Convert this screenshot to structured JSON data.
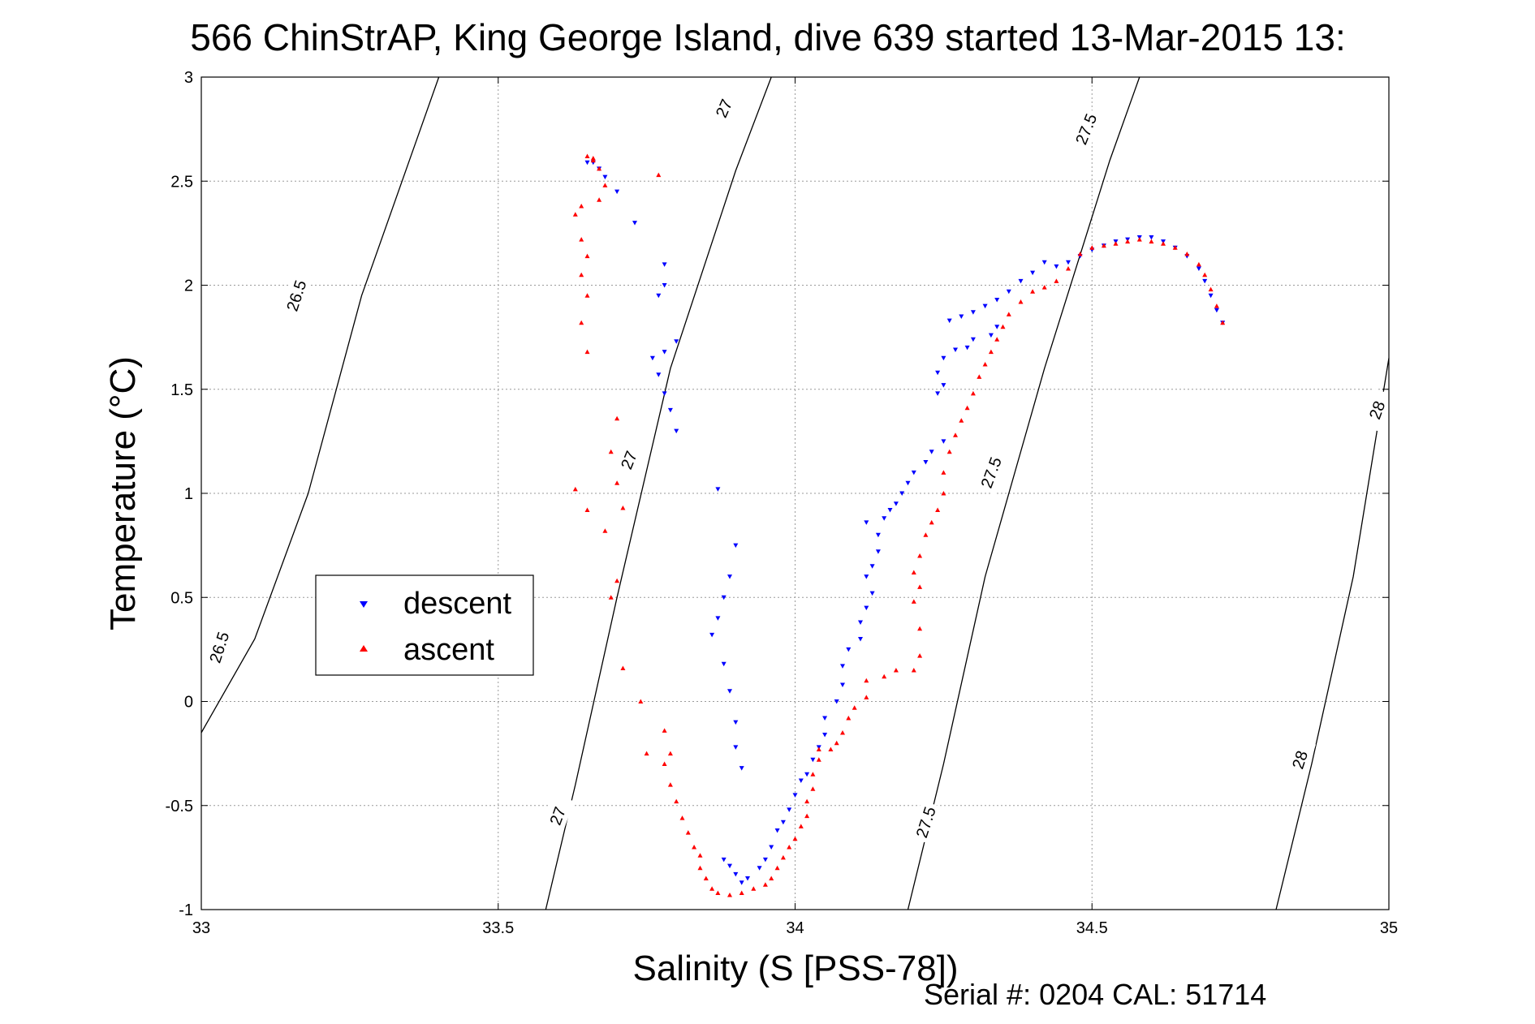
{
  "chart_data": {
    "type": "scatter",
    "title": "566 ChinStrAP, King George Island, dive 639 started 13-Mar-2015 13:",
    "xlabel": "Salinity (S [PSS-78])",
    "ylabel": "Temperature (°C)",
    "footer": "Serial #: 0204  CAL: 51714",
    "xlim": [
      33,
      35
    ],
    "ylim": [
      -1,
      3
    ],
    "xticks": [
      33,
      33.5,
      34,
      34.5,
      35
    ],
    "xtick_labels": [
      "33",
      "33.5",
      "34",
      "34.5",
      "35"
    ],
    "yticks": [
      -1,
      -0.5,
      0,
      0.5,
      1,
      1.5,
      2,
      2.5,
      3
    ],
    "ytick_labels": [
      "-1",
      "-0.5",
      "0",
      "0.5",
      "1",
      "1.5",
      "2",
      "2.5",
      "3"
    ],
    "grid": true,
    "legend_position": "left-middle",
    "contours": [
      {
        "level": "26.5",
        "points": [
          [
            33.0,
            -0.15
          ],
          [
            33.09,
            0.3
          ],
          [
            33.18,
            1.0
          ],
          [
            33.27,
            1.95
          ],
          [
            33.4,
            3.0
          ]
        ]
      },
      {
        "level": "27",
        "points": [
          [
            33.58,
            -1.0
          ],
          [
            33.63,
            -0.4
          ],
          [
            33.7,
            0.5
          ],
          [
            33.79,
            1.6
          ],
          [
            33.9,
            2.55
          ],
          [
            33.96,
            3.0
          ]
        ]
      },
      {
        "level": "27.5",
        "points": [
          [
            34.19,
            -1.0
          ],
          [
            34.25,
            -0.3
          ],
          [
            34.32,
            0.6
          ],
          [
            34.42,
            1.6
          ],
          [
            34.53,
            2.6
          ],
          [
            34.58,
            3.0
          ]
        ]
      },
      {
        "level": "28",
        "points": [
          [
            34.81,
            -1.0
          ],
          [
            34.87,
            -0.3
          ],
          [
            34.94,
            0.6
          ],
          [
            35.0,
            1.65
          ]
        ]
      }
    ],
    "contour_labels": [
      {
        "text": "26.5",
        "x": 33.16,
        "y": 1.95,
        "angle": -72
      },
      {
        "text": "26.5",
        "x": 33.03,
        "y": 0.26,
        "angle": -72
      },
      {
        "text": "27",
        "x": 33.88,
        "y": 2.85,
        "angle": -66
      },
      {
        "text": "27",
        "x": 33.72,
        "y": 1.16,
        "angle": -68
      },
      {
        "text": "27",
        "x": 33.6,
        "y": -0.55,
        "angle": -70
      },
      {
        "text": "27.5",
        "x": 34.49,
        "y": 2.75,
        "angle": -68
      },
      {
        "text": "27.5",
        "x": 34.33,
        "y": 1.1,
        "angle": -70
      },
      {
        "text": "27.5",
        "x": 34.22,
        "y": -0.58,
        "angle": -72
      },
      {
        "text": "28",
        "x": 34.98,
        "y": 1.4,
        "angle": -70
      },
      {
        "text": "28",
        "x": 34.85,
        "y": -0.28,
        "angle": -72
      }
    ],
    "series": [
      {
        "name": "descent",
        "color": "#0000ff",
        "marker": "triangle-down",
        "points": [
          [
            34.72,
            1.82
          ],
          [
            34.71,
            1.88
          ],
          [
            34.7,
            1.95
          ],
          [
            34.69,
            2.02
          ],
          [
            34.68,
            2.08
          ],
          [
            34.66,
            2.14
          ],
          [
            34.64,
            2.18
          ],
          [
            34.62,
            2.21
          ],
          [
            34.6,
            2.23
          ],
          [
            34.58,
            2.23
          ],
          [
            34.56,
            2.22
          ],
          [
            34.54,
            2.21
          ],
          [
            34.52,
            2.19
          ],
          [
            34.5,
            2.17
          ],
          [
            34.48,
            2.14
          ],
          [
            34.46,
            2.11
          ],
          [
            34.44,
            2.09
          ],
          [
            34.42,
            2.11
          ],
          [
            34.4,
            2.06
          ],
          [
            34.38,
            2.02
          ],
          [
            34.36,
            1.97
          ],
          [
            34.34,
            1.93
          ],
          [
            34.32,
            1.9
          ],
          [
            34.3,
            1.87
          ],
          [
            34.28,
            1.85
          ],
          [
            34.26,
            1.83
          ],
          [
            34.34,
            1.8
          ],
          [
            34.33,
            1.76
          ],
          [
            34.3,
            1.74
          ],
          [
            34.29,
            1.7
          ],
          [
            34.27,
            1.69
          ],
          [
            34.25,
            1.65
          ],
          [
            34.24,
            1.58
          ],
          [
            34.25,
            1.52
          ],
          [
            34.24,
            1.48
          ],
          [
            34.25,
            1.25
          ],
          [
            34.23,
            1.2
          ],
          [
            34.22,
            1.15
          ],
          [
            34.2,
            1.1
          ],
          [
            34.19,
            1.05
          ],
          [
            34.18,
            1.0
          ],
          [
            34.17,
            0.95
          ],
          [
            34.16,
            0.92
          ],
          [
            34.15,
            0.88
          ],
          [
            34.12,
            0.86
          ],
          [
            34.14,
            0.8
          ],
          [
            34.14,
            0.72
          ],
          [
            34.13,
            0.65
          ],
          [
            34.12,
            0.6
          ],
          [
            34.13,
            0.52
          ],
          [
            34.12,
            0.45
          ],
          [
            34.11,
            0.38
          ],
          [
            34.11,
            0.3
          ],
          [
            34.09,
            0.25
          ],
          [
            34.08,
            0.17
          ],
          [
            34.08,
            0.08
          ],
          [
            34.07,
            0.0
          ],
          [
            34.05,
            -0.08
          ],
          [
            34.05,
            -0.16
          ],
          [
            34.04,
            -0.22
          ],
          [
            34.03,
            -0.28
          ],
          [
            34.02,
            -0.35
          ],
          [
            34.01,
            -0.38
          ],
          [
            34.0,
            -0.45
          ],
          [
            33.99,
            -0.52
          ],
          [
            33.98,
            -0.58
          ],
          [
            33.97,
            -0.62
          ],
          [
            33.96,
            -0.7
          ],
          [
            33.95,
            -0.76
          ],
          [
            33.94,
            -0.8
          ],
          [
            33.92,
            -0.85
          ],
          [
            33.91,
            -0.87
          ],
          [
            33.9,
            -0.83
          ],
          [
            33.89,
            -0.79
          ],
          [
            33.88,
            -0.76
          ],
          [
            33.91,
            -0.32
          ],
          [
            33.9,
            -0.22
          ],
          [
            33.9,
            -0.1
          ],
          [
            33.89,
            0.05
          ],
          [
            33.88,
            0.18
          ],
          [
            33.87,
            0.4
          ],
          [
            33.88,
            0.5
          ],
          [
            33.86,
            0.32
          ],
          [
            33.9,
            0.75
          ],
          [
            33.89,
            0.6
          ],
          [
            33.87,
            1.02
          ],
          [
            33.8,
            1.3
          ],
          [
            33.79,
            1.4
          ],
          [
            33.78,
            1.48
          ],
          [
            33.77,
            1.57
          ],
          [
            33.76,
            1.65
          ],
          [
            33.78,
            1.68
          ],
          [
            33.8,
            1.73
          ],
          [
            33.77,
            1.95
          ],
          [
            33.78,
            2.0
          ],
          [
            33.78,
            2.1
          ],
          [
            33.73,
            2.3
          ],
          [
            33.7,
            2.45
          ],
          [
            33.68,
            2.52
          ],
          [
            33.67,
            2.56
          ],
          [
            33.66,
            2.59
          ],
          [
            33.65,
            2.59
          ]
        ]
      },
      {
        "name": "ascent",
        "color": "#ff0000",
        "marker": "triangle-up",
        "points": [
          [
            34.72,
            1.82
          ],
          [
            34.71,
            1.9
          ],
          [
            34.7,
            1.98
          ],
          [
            34.69,
            2.05
          ],
          [
            34.68,
            2.1
          ],
          [
            34.66,
            2.15
          ],
          [
            34.64,
            2.18
          ],
          [
            34.62,
            2.2
          ],
          [
            34.6,
            2.21
          ],
          [
            34.58,
            2.22
          ],
          [
            34.56,
            2.21
          ],
          [
            34.54,
            2.2
          ],
          [
            34.52,
            2.19
          ],
          [
            34.5,
            2.18
          ],
          [
            34.48,
            2.15
          ],
          [
            34.46,
            2.08
          ],
          [
            34.44,
            2.02
          ],
          [
            34.42,
            1.99
          ],
          [
            34.4,
            1.97
          ],
          [
            34.38,
            1.92
          ],
          [
            34.36,
            1.86
          ],
          [
            34.35,
            1.8
          ],
          [
            34.34,
            1.74
          ],
          [
            34.33,
            1.68
          ],
          [
            34.32,
            1.62
          ],
          [
            34.31,
            1.56
          ],
          [
            34.3,
            1.48
          ],
          [
            34.29,
            1.41
          ],
          [
            34.28,
            1.35
          ],
          [
            34.27,
            1.28
          ],
          [
            34.26,
            1.2
          ],
          [
            34.25,
            1.1
          ],
          [
            34.25,
            1.0
          ],
          [
            34.24,
            0.92
          ],
          [
            34.23,
            0.86
          ],
          [
            34.22,
            0.8
          ],
          [
            34.21,
            0.7
          ],
          [
            34.2,
            0.62
          ],
          [
            34.21,
            0.55
          ],
          [
            34.2,
            0.48
          ],
          [
            34.21,
            0.35
          ],
          [
            34.21,
            0.22
          ],
          [
            34.2,
            0.15
          ],
          [
            34.17,
            0.15
          ],
          [
            34.15,
            0.12
          ],
          [
            34.12,
            0.1
          ],
          [
            34.12,
            0.02
          ],
          [
            34.1,
            -0.03
          ],
          [
            34.09,
            -0.08
          ],
          [
            34.08,
            -0.15
          ],
          [
            34.07,
            -0.2
          ],
          [
            34.06,
            -0.23
          ],
          [
            34.04,
            -0.23
          ],
          [
            34.04,
            -0.28
          ],
          [
            34.03,
            -0.35
          ],
          [
            34.03,
            -0.42
          ],
          [
            34.02,
            -0.48
          ],
          [
            34.02,
            -0.55
          ],
          [
            34.01,
            -0.6
          ],
          [
            34.0,
            -0.66
          ],
          [
            33.99,
            -0.7
          ],
          [
            33.98,
            -0.75
          ],
          [
            33.97,
            -0.8
          ],
          [
            33.96,
            -0.85
          ],
          [
            33.95,
            -0.88
          ],
          [
            33.93,
            -0.9
          ],
          [
            33.91,
            -0.92
          ],
          [
            33.89,
            -0.93
          ],
          [
            33.87,
            -0.92
          ],
          [
            33.86,
            -0.9
          ],
          [
            33.85,
            -0.85
          ],
          [
            33.84,
            -0.8
          ],
          [
            33.84,
            -0.74
          ],
          [
            33.83,
            -0.7
          ],
          [
            33.82,
            -0.63
          ],
          [
            33.81,
            -0.56
          ],
          [
            33.8,
            -0.48
          ],
          [
            33.79,
            -0.4
          ],
          [
            33.78,
            -0.3
          ],
          [
            33.79,
            -0.25
          ],
          [
            33.78,
            -0.14
          ],
          [
            33.75,
            -0.25
          ],
          [
            33.74,
            0.0
          ],
          [
            33.71,
            0.16
          ],
          [
            33.69,
            0.5
          ],
          [
            33.7,
            0.58
          ],
          [
            33.68,
            0.82
          ],
          [
            33.65,
            0.92
          ],
          [
            33.63,
            1.02
          ],
          [
            33.71,
            0.93
          ],
          [
            33.7,
            1.05
          ],
          [
            33.69,
            1.2
          ],
          [
            33.7,
            1.36
          ],
          [
            33.65,
            1.68
          ],
          [
            33.64,
            1.82
          ],
          [
            33.65,
            1.95
          ],
          [
            33.64,
            2.05
          ],
          [
            33.65,
            2.14
          ],
          [
            33.64,
            2.22
          ],
          [
            33.63,
            2.34
          ],
          [
            33.64,
            2.38
          ],
          [
            33.67,
            2.41
          ],
          [
            33.68,
            2.48
          ],
          [
            33.67,
            2.56
          ],
          [
            33.66,
            2.61
          ],
          [
            33.65,
            2.62
          ],
          [
            33.77,
            2.53
          ],
          [
            33.66,
            2.6
          ]
        ]
      }
    ]
  }
}
